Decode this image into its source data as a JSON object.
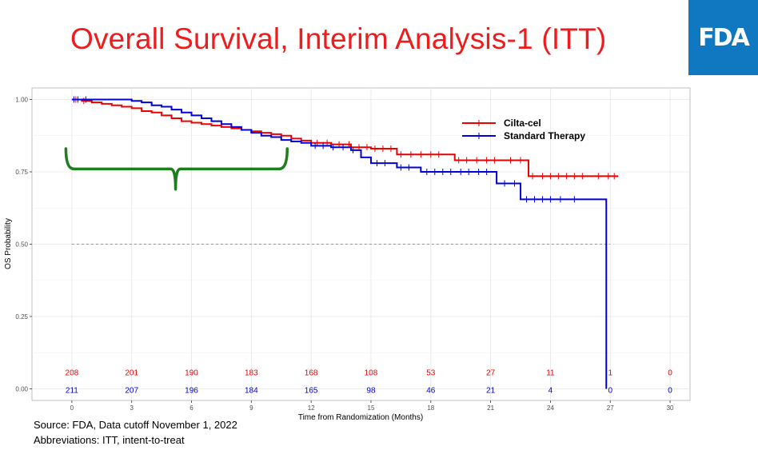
{
  "title": "Overall Survival, Interim Analysis-1 (ITT)",
  "logo_text": "FDA",
  "footnotes": {
    "source": "Source: FDA, Data cutoff November 1, 2022",
    "abbreviations": "Abbreviations:  ITT, intent-to-treat"
  },
  "colors": {
    "title": "#ee1c1c",
    "logo_bg": "#0f78c0",
    "cilta": "#ee0000",
    "standard": "#0000dd",
    "brace": "#1e7d1e"
  },
  "chart_data": {
    "type": "line",
    "subtype": "kaplan-meier",
    "title": "",
    "xlabel": "Time from Randomization (Months)",
    "ylabel": "OS Probability",
    "xlim": [
      -2,
      31
    ],
    "ylim": [
      -0.04,
      1.04
    ],
    "x_ticks": [
      0,
      3,
      6,
      9,
      12,
      15,
      18,
      21,
      24,
      27,
      30
    ],
    "y_ticks": [
      0.0,
      0.25,
      0.5,
      0.75,
      1.0
    ],
    "y_tick_labels": [
      "0.00",
      "0.25",
      "0.50",
      "0.75",
      "1.00"
    ],
    "grid": true,
    "legend_position": "top-right",
    "median_line": 0.5,
    "series": [
      {
        "name": "Cilta-cel",
        "color": "#ee0000",
        "steps": [
          [
            0,
            1.0
          ],
          [
            0.5,
            0.995
          ],
          [
            1,
            0.99
          ],
          [
            1.5,
            0.985
          ],
          [
            2,
            0.98
          ],
          [
            2.5,
            0.975
          ],
          [
            3,
            0.97
          ],
          [
            3.5,
            0.96
          ],
          [
            4,
            0.955
          ],
          [
            4.5,
            0.945
          ],
          [
            5,
            0.935
          ],
          [
            5.5,
            0.925
          ],
          [
            6,
            0.92
          ],
          [
            6.5,
            0.915
          ],
          [
            7,
            0.91
          ],
          [
            7.5,
            0.905
          ],
          [
            8,
            0.9
          ],
          [
            8.5,
            0.895
          ],
          [
            9,
            0.89
          ],
          [
            9.5,
            0.885
          ],
          [
            10,
            0.88
          ],
          [
            10.5,
            0.875
          ],
          [
            11,
            0.865
          ],
          [
            11.5,
            0.858
          ],
          [
            12,
            0.85
          ],
          [
            13,
            0.845
          ],
          [
            14,
            0.835
          ],
          [
            15,
            0.83
          ],
          [
            16.3,
            0.81
          ],
          [
            19.2,
            0.79
          ],
          [
            22.9,
            0.735
          ],
          [
            27.4,
            0.735
          ]
        ],
        "censor_times": [
          0.2,
          0.6,
          12.3,
          12.8,
          13.4,
          13.9,
          14.4,
          14.8,
          15.2,
          15.6,
          16,
          16.5,
          17,
          17.5,
          18,
          18.4,
          19.4,
          19.8,
          20.3,
          20.8,
          21.2,
          22,
          22.5,
          23.1,
          23.6,
          24,
          24.4,
          24.8,
          25.2,
          25.6,
          26.4,
          26.9,
          27.2
        ],
        "at_risk": [
          208,
          201,
          190,
          183,
          168,
          108,
          53,
          27,
          11,
          1,
          0
        ]
      },
      {
        "name": "Standard Therapy",
        "color": "#0000dd",
        "steps": [
          [
            0,
            1.0
          ],
          [
            3,
            0.995
          ],
          [
            3.5,
            0.99
          ],
          [
            4,
            0.98
          ],
          [
            4.5,
            0.975
          ],
          [
            5,
            0.965
          ],
          [
            5.5,
            0.955
          ],
          [
            6,
            0.945
          ],
          [
            6.5,
            0.935
          ],
          [
            7,
            0.925
          ],
          [
            7.5,
            0.915
          ],
          [
            8,
            0.905
          ],
          [
            8.5,
            0.895
          ],
          [
            9,
            0.885
          ],
          [
            9.5,
            0.875
          ],
          [
            10,
            0.87
          ],
          [
            10.5,
            0.86
          ],
          [
            11,
            0.855
          ],
          [
            11.5,
            0.85
          ],
          [
            12,
            0.84
          ],
          [
            13,
            0.835
          ],
          [
            14,
            0.825
          ],
          [
            14.5,
            0.8
          ],
          [
            15,
            0.78
          ],
          [
            16.3,
            0.765
          ],
          [
            17.5,
            0.75
          ],
          [
            21.3,
            0.71
          ],
          [
            22.5,
            0.655
          ],
          [
            26.8,
            0.655
          ],
          [
            26.8,
            0.0
          ]
        ],
        "censor_times": [
          0.1,
          0.3,
          0.7,
          12.2,
          12.6,
          13.1,
          13.6,
          14.1,
          15.3,
          15.7,
          16.5,
          16.9,
          17.8,
          18.2,
          18.6,
          19,
          19.5,
          19.9,
          20.4,
          20.8,
          21.7,
          22.2,
          22.8,
          23.2,
          23.6,
          24,
          24.5,
          25.2
        ],
        "at_risk": [
          211,
          207,
          196,
          184,
          165,
          98,
          46,
          21,
          4,
          0,
          0
        ]
      }
    ],
    "at_risk_times": [
      0,
      3,
      6,
      9,
      12,
      15,
      18,
      21,
      24,
      27,
      30
    ]
  }
}
